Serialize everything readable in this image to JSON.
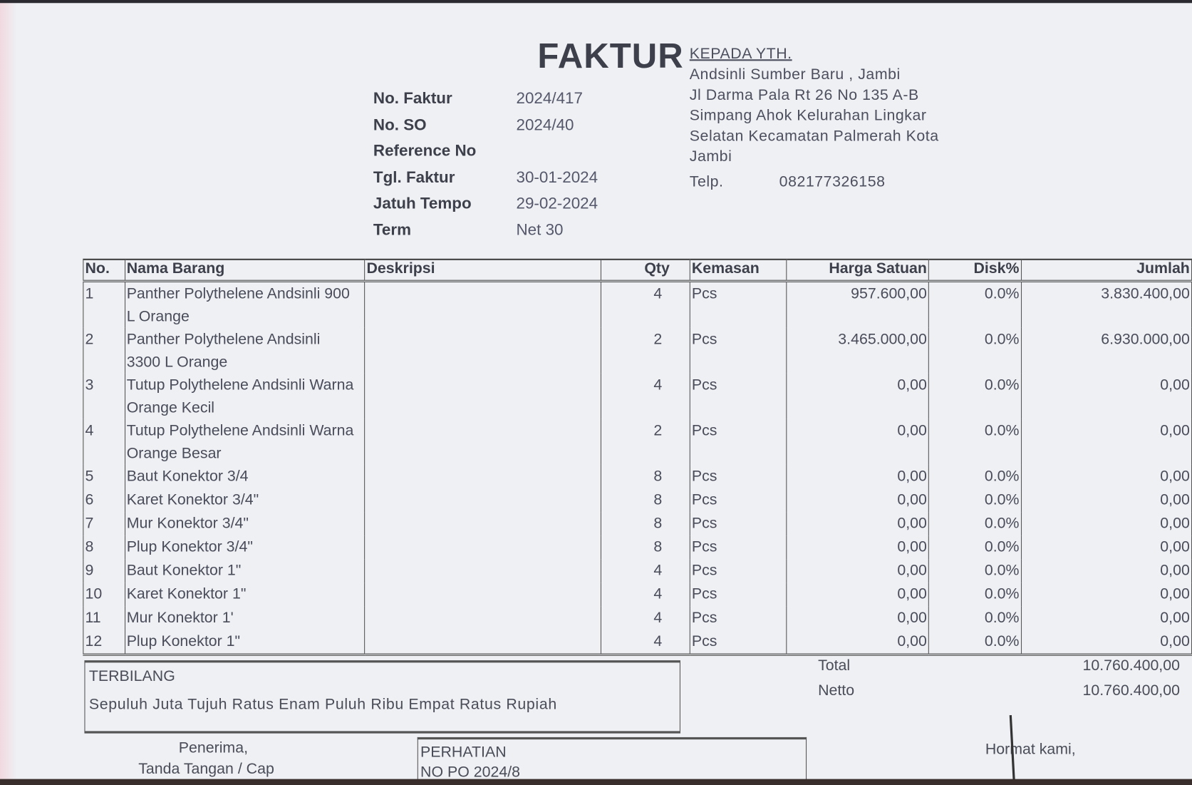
{
  "title": "FAKTUR",
  "meta": [
    {
      "label": "No. Faktur",
      "value": "2024/417"
    },
    {
      "label": "No. SO",
      "value": "2024/40"
    },
    {
      "label": "Reference No",
      "value": ""
    },
    {
      "label": "Tgl. Faktur",
      "value": "30-01-2024"
    },
    {
      "label": "Jatuh Tempo",
      "value": "29-02-2024"
    },
    {
      "label": "Term",
      "value": "Net 30"
    }
  ],
  "recipient": {
    "heading": "KEPADA YTH.",
    "lines": [
      "Andsinli Sumber Baru , Jambi",
      "Jl Darma Pala Rt 26 No 135 A-B",
      "Simpang Ahok Kelurahan Lingkar",
      "Selatan Kecamatan Palmerah Kota",
      "Jambi"
    ],
    "telp_label": "Telp.",
    "telp": "082177326158"
  },
  "table": {
    "headers": [
      "No.",
      "Nama Barang",
      "Deskripsi",
      "Qty",
      "Kemasan",
      "Harga Satuan",
      "Disk%",
      "Jumlah"
    ],
    "rows": [
      {
        "no": "1",
        "name": "Panther Polythelene Andsinli 900 L Orange",
        "qty": "4",
        "unit": "Pcs",
        "price": "957.600,00",
        "disc": "0.0%",
        "total": "3.830.400,00"
      },
      {
        "no": "2",
        "name": "Panther Polythelene Andsinli 3300 L Orange",
        "qty": "2",
        "unit": "Pcs",
        "price": "3.465.000,00",
        "disc": "0.0%",
        "total": "6.930.000,00"
      },
      {
        "no": "3",
        "name": "Tutup Polythelene Andsinli Warna Orange Kecil",
        "qty": "4",
        "unit": "Pcs",
        "price": "0,00",
        "disc": "0.0%",
        "total": "0,00"
      },
      {
        "no": "4",
        "name": "Tutup Polythelene Andsinli Warna Orange Besar",
        "qty": "2",
        "unit": "Pcs",
        "price": "0,00",
        "disc": "0.0%",
        "total": "0,00"
      },
      {
        "no": "5",
        "name": "Baut Konektor 3/4",
        "qty": "8",
        "unit": "Pcs",
        "price": "0,00",
        "disc": "0.0%",
        "total": "0,00"
      },
      {
        "no": "6",
        "name": "Karet Konektor 3/4\"",
        "qty": "8",
        "unit": "Pcs",
        "price": "0,00",
        "disc": "0.0%",
        "total": "0,00"
      },
      {
        "no": "7",
        "name": "Mur Konektor 3/4\"",
        "qty": "8",
        "unit": "Pcs",
        "price": "0,00",
        "disc": "0.0%",
        "total": "0,00"
      },
      {
        "no": "8",
        "name": "Plup Konektor 3/4\"",
        "qty": "8",
        "unit": "Pcs",
        "price": "0,00",
        "disc": "0.0%",
        "total": "0,00"
      },
      {
        "no": "9",
        "name": "Baut Konektor 1\"",
        "qty": "4",
        "unit": "Pcs",
        "price": "0,00",
        "disc": "0.0%",
        "total": "0,00"
      },
      {
        "no": "10",
        "name": "Karet Konektor 1\"",
        "qty": "4",
        "unit": "Pcs",
        "price": "0,00",
        "disc": "0.0%",
        "total": "0,00"
      },
      {
        "no": "11",
        "name": "Mur Konektor 1'",
        "qty": "4",
        "unit": "Pcs",
        "price": "0,00",
        "disc": "0.0%",
        "total": "0,00"
      },
      {
        "no": "12",
        "name": "Plup Konektor 1\"",
        "qty": "4",
        "unit": "Pcs",
        "price": "0,00",
        "disc": "0.0%",
        "total": "0,00"
      }
    ]
  },
  "terbilang": {
    "label": "TERBILANG",
    "text": "Sepuluh Juta Tujuh Ratus Enam Puluh Ribu Empat Ratus Rupiah"
  },
  "totals": {
    "total_label": "Total",
    "total": "10.760.400,00",
    "netto_label": "Netto",
    "netto": "10.760.400,00"
  },
  "footer": {
    "penerima": "Penerima,",
    "tanda": "Tanda Tangan / Cap",
    "perhatian": "PERHATIAN",
    "perhatian_sub": "NO PO 2024/8",
    "hormat": "Hormat kami,"
  }
}
